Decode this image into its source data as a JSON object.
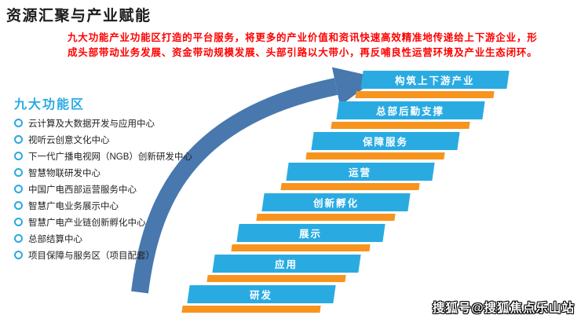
{
  "slide": {
    "title": "资源汇聚与产业赋能",
    "intro_line1": "九大功能产业功能区打造的平台服务，将更多的产业价值和资讯快速高效精准地传递给上下游企业，形",
    "intro_line2": "成头部带动业务发展、资金带动规模发展、头部引路以大带小，再反哺良性运营环境及产业生态闭环。"
  },
  "functions_panel": {
    "heading": "九大功能区",
    "items": [
      "云计算及大数据开发与应用中心",
      "视听云创意文化中心",
      "下一代广播电视网（NGB）创新研发中心",
      "智慧物联研发中心",
      "中国广电西部运营服务中心",
      "智慧广电业务展示中心",
      "智慧广电产业链创新孵化中心",
      "总部结算中心",
      "项目保障与服务区（项目配套）"
    ]
  },
  "stairs": {
    "steps_bottom_to_top": [
      "研发",
      "应用",
      "展示",
      "创新孵化",
      "运营",
      "保障服务",
      "总部后勤支撑",
      "构筑上下游产业"
    ]
  },
  "watermark": "搜狐号@搜狐焦点乐山站",
  "colors": {
    "step_blue": "#29ABE2",
    "step_orange": "#F7941E",
    "arrow_blue": "#4878AE",
    "heading_blue": "#29ABE2",
    "intro_red": "#FF0000",
    "title_black": "#1A1A1A"
  }
}
